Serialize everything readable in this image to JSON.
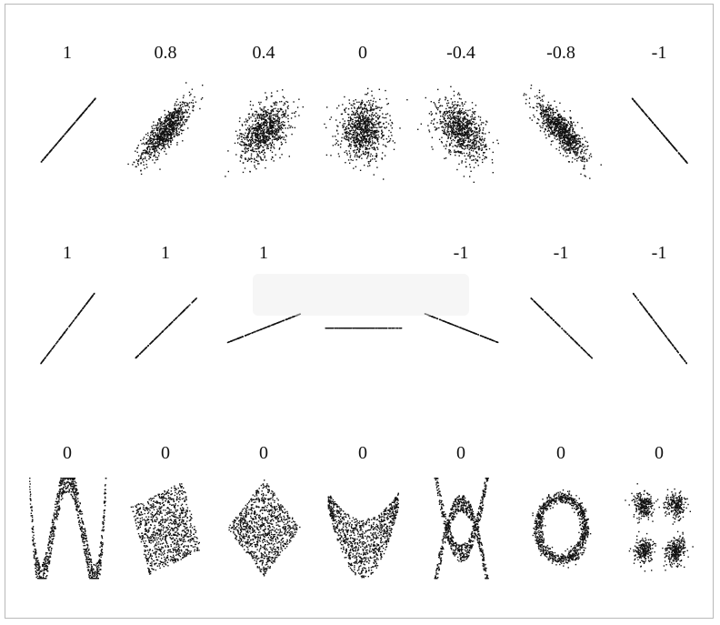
{
  "chart_data": {
    "type": "scatter",
    "title": "",
    "xlabel": "",
    "ylabel": "",
    "grid": false,
    "legend": "none",
    "point_color": "#111111",
    "rows": [
      {
        "panels": [
          {
            "label": "1",
            "kind": "gaussian",
            "r": 1,
            "n": 260
          },
          {
            "label": "0.8",
            "kind": "gaussian",
            "r": 0.8,
            "n": 900
          },
          {
            "label": "0.4",
            "kind": "gaussian",
            "r": 0.4,
            "n": 900
          },
          {
            "label": "0",
            "kind": "gaussian",
            "r": 0,
            "n": 900
          },
          {
            "label": "-0.4",
            "kind": "gaussian",
            "r": -0.4,
            "n": 900
          },
          {
            "label": "-0.8",
            "kind": "gaussian",
            "r": -0.8,
            "n": 900
          },
          {
            "label": "-1",
            "kind": "gaussian",
            "r": -1,
            "n": 260
          }
        ]
      },
      {
        "panels": [
          {
            "label": "1",
            "kind": "line",
            "slope": 1.0,
            "n": 200
          },
          {
            "label": "1",
            "kind": "line",
            "slope": 0.75,
            "n": 200
          },
          {
            "label": "1",
            "kind": "line",
            "slope": 0.3,
            "n": 200
          },
          {
            "label": "",
            "kind": "line",
            "slope": 0,
            "n": 200
          },
          {
            "label": "-1",
            "kind": "line",
            "slope": -0.3,
            "n": 200
          },
          {
            "label": "-1",
            "kind": "line",
            "slope": -0.75,
            "n": 200
          },
          {
            "label": "-1",
            "kind": "line",
            "slope": -1.0,
            "n": 200
          }
        ]
      },
      {
        "panels": [
          {
            "label": "0",
            "kind": "w-shape",
            "n": 1000
          },
          {
            "label": "0",
            "kind": "rotated-square",
            "angle_deg": 20,
            "n": 1000
          },
          {
            "label": "0",
            "kind": "diamond",
            "n": 1000
          },
          {
            "label": "0",
            "kind": "parabola",
            "n": 1000
          },
          {
            "label": "0",
            "kind": "x-shape",
            "n": 1000
          },
          {
            "label": "0",
            "kind": "ring",
            "n": 1000
          },
          {
            "label": "0",
            "kind": "four-clusters",
            "n": 1000
          }
        ]
      }
    ]
  }
}
